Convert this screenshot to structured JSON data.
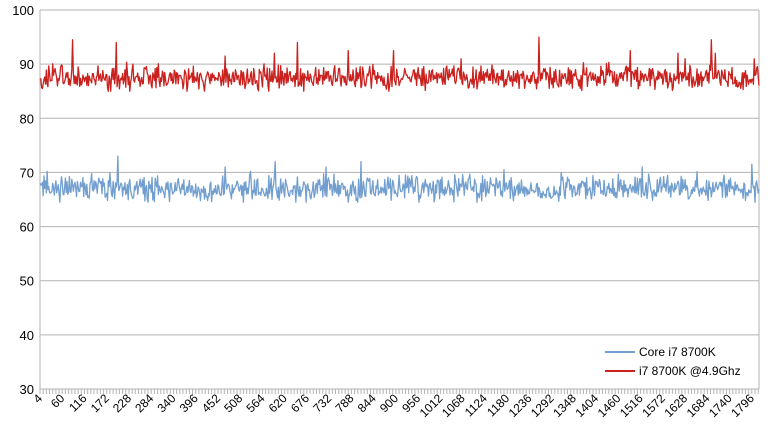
{
  "chart_data": {
    "type": "line",
    "title": "",
    "xlabel": "",
    "ylabel": "",
    "ylim": [
      30,
      100
    ],
    "yticks": [
      30,
      40,
      50,
      60,
      70,
      80,
      90,
      100
    ],
    "x_start": 4,
    "x_end": 1814,
    "x_step": 2,
    "x_tick_labels": [
      4,
      60,
      116,
      172,
      228,
      284,
      340,
      396,
      452,
      508,
      564,
      620,
      676,
      732,
      788,
      844,
      900,
      956,
      1012,
      1068,
      1124,
      1180,
      1236,
      1292,
      1348,
      1404,
      1460,
      1516,
      1572,
      1628,
      1684,
      1740,
      1796
    ],
    "grid": true,
    "legend_position": "bottom-right",
    "series": [
      {
        "name": "Core i7 8700K",
        "color": "#729fcf",
        "mean": 67,
        "range": [
          64.5,
          73
        ],
        "peaks": [
          {
            "x": 22,
            "y": 70.2
          },
          {
            "x": 200,
            "y": 73
          },
          {
            "x": 470,
            "y": 71
          },
          {
            "x": 596,
            "y": 72
          },
          {
            "x": 724,
            "y": 71
          },
          {
            "x": 812,
            "y": 72
          },
          {
            "x": 1172,
            "y": 70.5
          },
          {
            "x": 1520,
            "y": 71
          },
          {
            "x": 1796,
            "y": 71.5
          }
        ]
      },
      {
        "name": "i7 8700K @4.9Ghz",
        "color": "#c9211e",
        "mean": 87.5,
        "range": [
          85,
          95
        ],
        "peaks": [
          {
            "x": 86,
            "y": 94.5
          },
          {
            "x": 196,
            "y": 94
          },
          {
            "x": 470,
            "y": 91.5
          },
          {
            "x": 594,
            "y": 92
          },
          {
            "x": 652,
            "y": 94
          },
          {
            "x": 780,
            "y": 92.5
          },
          {
            "x": 894,
            "y": 92.5
          },
          {
            "x": 1064,
            "y": 91
          },
          {
            "x": 1260,
            "y": 95
          },
          {
            "x": 1490,
            "y": 92.5
          },
          {
            "x": 1610,
            "y": 92
          },
          {
            "x": 1704,
            "y": 92
          },
          {
            "x": 1628,
            "y": 91
          },
          {
            "x": 1802,
            "y": 91
          },
          {
            "x": 1694,
            "y": 94.5
          }
        ]
      }
    ]
  }
}
